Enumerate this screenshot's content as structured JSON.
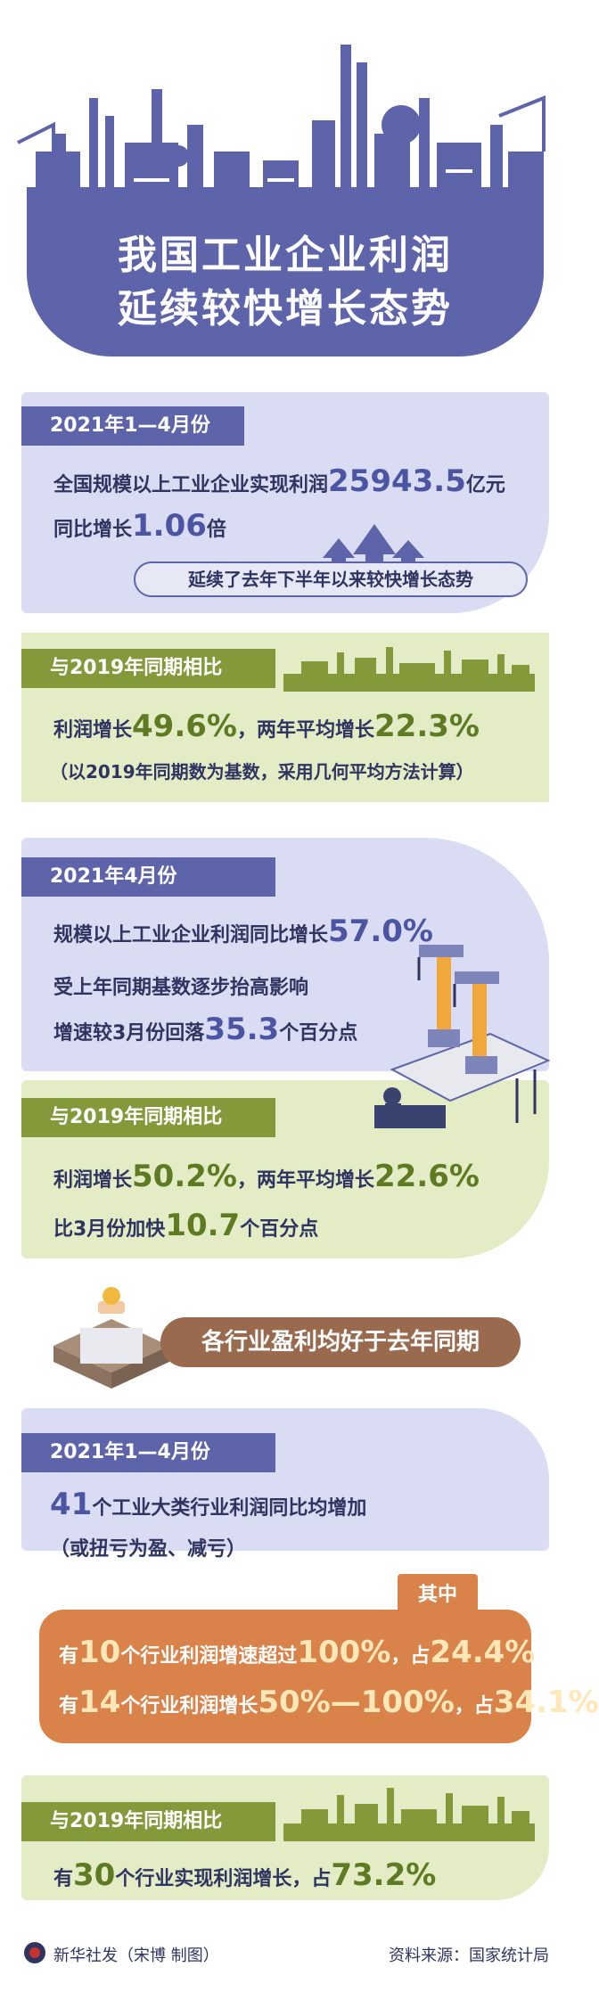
{
  "title": {
    "line1": "我国工业企业利润",
    "line2": "延续较快增长态势"
  },
  "section1": {
    "tag": "2021年1—4月份",
    "line1_pre": "全国规模以上工业企业实现利润",
    "line1_num": "25943.5",
    "line1_post": "亿元",
    "line2_pre": "同比增长",
    "line2_num": "1.06",
    "line2_post": "倍",
    "note": "延续了去年下半年以来较快增长态势"
  },
  "section2": {
    "tag": "与2019年同期相比",
    "line1_pre": "利润增长",
    "line1_num1": "49.6%",
    "line1_mid": "，两年平均增长",
    "line1_num2": "22.3%",
    "line2": "（以2019年同期数为基数，采用几何平均方法计算）"
  },
  "section3": {
    "tag": "2021年4月份",
    "line1_pre": "规模以上工业企业利润同比增长",
    "line1_num": "57.0%",
    "line2": "受上年同期基数逐步抬高影响",
    "line3_pre": "增速较3月份回落",
    "line3_num": "35.3",
    "line3_post": "个百分点"
  },
  "section4": {
    "tag": "与2019年同期相比",
    "line1_pre": "利润增长",
    "line1_num1": "50.2%",
    "line1_mid": "，两年平均增长",
    "line1_num2": "22.6%",
    "line2_pre": "比3月份加快",
    "line2_num": "10.7",
    "line2_post": "个百分点"
  },
  "banner": {
    "text": "各行业盈利均好于去年同期"
  },
  "section5": {
    "tag": "2021年1—4月份",
    "line1_num": "41",
    "line1_post": "个工业大类行业利润同比均增加",
    "line2": "（或扭亏为盈、减亏）"
  },
  "orange": {
    "badge": "其中",
    "line1_a": "有",
    "line1_n1": "10",
    "line1_b": "个行业利润增速超过",
    "line1_n2": "100%",
    "line1_c": "，占",
    "line1_n3": "24.4%",
    "line2_a": "有",
    "line2_n1": "14",
    "line2_b": "个行业利润增长",
    "line2_n2": "50%—100%",
    "line2_c": "，占",
    "line2_n3": "34.1%"
  },
  "section6": {
    "tag": "与2019年同期相比",
    "line1_a": "有",
    "line1_n1": "30",
    "line1_b": "个行业实现利润增长，占",
    "line1_n2": "73.2%"
  },
  "footer": {
    "agency": "新华社发",
    "credit": "（宋博 制图）",
    "source": "资料来源：国家统计局"
  },
  "colors": {
    "primary_blue": "#5d64a9",
    "panel_blue": "#d9dcf2",
    "olive": "#849a3a",
    "panel_green": "#e3ecc5",
    "orange": "#d9824a",
    "brown": "#9a6a4e"
  }
}
